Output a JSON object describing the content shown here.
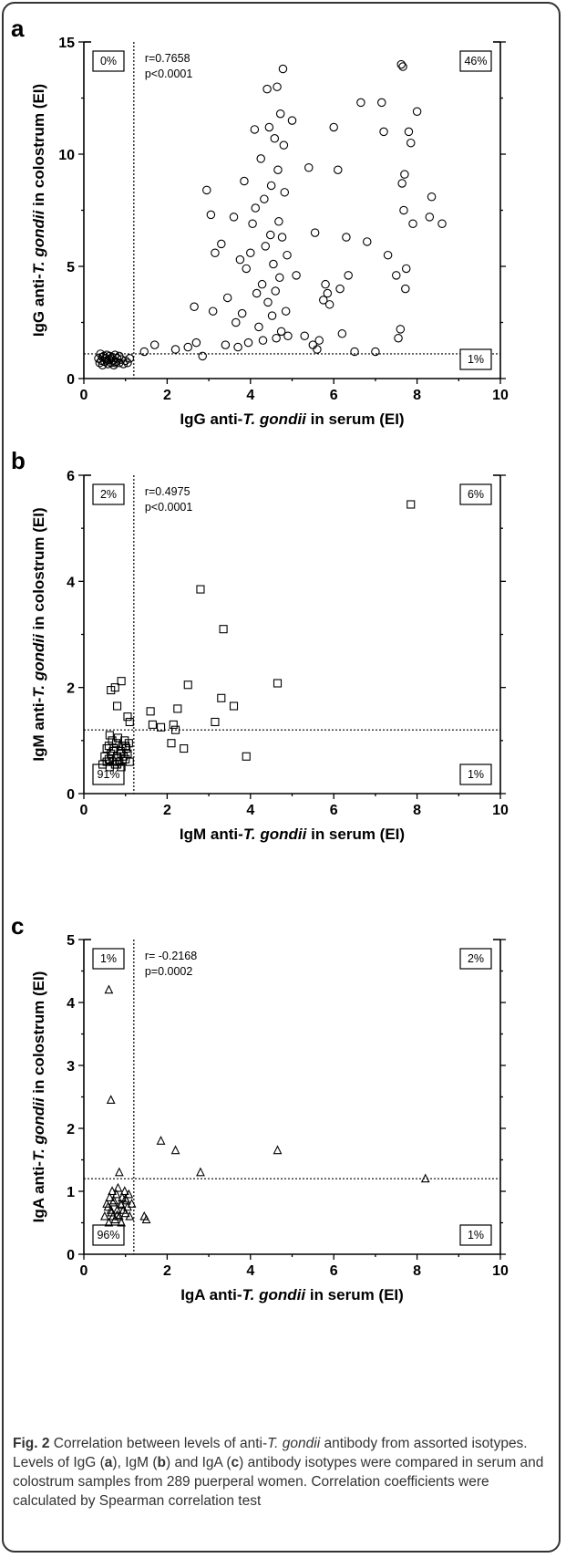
{
  "chart_data": [
    {
      "type": "scatter",
      "panel": "a",
      "marker": "circle",
      "xlabel": [
        "IgG anti-",
        "T. gondii",
        " in serum (EI)"
      ],
      "ylabel": [
        "IgG anti-",
        "T. gondii",
        " in colostrum (EI)"
      ],
      "xlim": [
        0,
        10
      ],
      "ylim": [
        0,
        15
      ],
      "xticks": [
        0,
        2,
        4,
        6,
        8,
        10
      ],
      "yticks": [
        0,
        5,
        10,
        15
      ],
      "cutoff_x": 1.2,
      "cutoff_y": 1.1,
      "stats": [
        "r=0.7658",
        "p<0.0001"
      ],
      "quadrants": {
        "top_left": "0%",
        "top_right": "46%",
        "bottom_right": "1%"
      },
      "points": [
        [
          0.35,
          0.9
        ],
        [
          0.38,
          0.7
        ],
        [
          0.4,
          1.1
        ],
        [
          0.42,
          0.8
        ],
        [
          0.45,
          0.6
        ],
        [
          0.48,
          1.0
        ],
        [
          0.5,
          0.75
        ],
        [
          0.52,
          0.9
        ],
        [
          0.55,
          1.05
        ],
        [
          0.58,
          0.65
        ],
        [
          0.6,
          0.85
        ],
        [
          0.62,
          1.0
        ],
        [
          0.65,
          0.7
        ],
        [
          0.68,
          0.95
        ],
        [
          0.7,
          0.8
        ],
        [
          0.72,
          0.6
        ],
        [
          0.75,
          1.05
        ],
        [
          0.78,
          0.75
        ],
        [
          0.8,
          0.9
        ],
        [
          0.85,
          0.7
        ],
        [
          0.9,
          0.85
        ],
        [
          0.95,
          0.65
        ],
        [
          1.0,
          0.8
        ],
        [
          1.05,
          0.7
        ],
        [
          1.1,
          0.9
        ],
        [
          0.45,
          0.95
        ],
        [
          0.55,
          0.8
        ],
        [
          0.65,
          0.9
        ],
        [
          0.75,
          0.7
        ],
        [
          0.85,
          1.0
        ],
        [
          1.45,
          1.2
        ],
        [
          1.7,
          1.5
        ],
        [
          2.2,
          1.3
        ],
        [
          2.5,
          1.4
        ],
        [
          2.65,
          3.2
        ],
        [
          2.7,
          1.6
        ],
        [
          2.85,
          1.0
        ],
        [
          2.95,
          8.4
        ],
        [
          3.05,
          7.3
        ],
        [
          3.1,
          3.0
        ],
        [
          3.15,
          5.6
        ],
        [
          3.3,
          6.0
        ],
        [
          3.4,
          1.5
        ],
        [
          3.45,
          3.6
        ],
        [
          3.6,
          7.2
        ],
        [
          3.65,
          2.5
        ],
        [
          3.7,
          1.4
        ],
        [
          3.75,
          5.3
        ],
        [
          3.8,
          2.9
        ],
        [
          3.85,
          8.8
        ],
        [
          3.9,
          4.9
        ],
        [
          3.95,
          1.6
        ],
        [
          4.0,
          5.6
        ],
        [
          4.05,
          6.9
        ],
        [
          4.1,
          11.1
        ],
        [
          4.12,
          7.6
        ],
        [
          4.15,
          3.8
        ],
        [
          4.2,
          2.3
        ],
        [
          4.25,
          9.8
        ],
        [
          4.28,
          4.2
        ],
        [
          4.3,
          1.7
        ],
        [
          4.33,
          8.0
        ],
        [
          4.36,
          5.9
        ],
        [
          4.4,
          12.9
        ],
        [
          4.42,
          3.4
        ],
        [
          4.45,
          11.2
        ],
        [
          4.48,
          6.4
        ],
        [
          4.5,
          8.6
        ],
        [
          4.52,
          2.8
        ],
        [
          4.55,
          5.1
        ],
        [
          4.58,
          10.7
        ],
        [
          4.6,
          3.9
        ],
        [
          4.62,
          1.8
        ],
        [
          4.64,
          13.0
        ],
        [
          4.66,
          9.3
        ],
        [
          4.68,
          7.0
        ],
        [
          4.7,
          4.5
        ],
        [
          4.72,
          11.8
        ],
        [
          4.74,
          2.1
        ],
        [
          4.76,
          6.3
        ],
        [
          4.78,
          13.8
        ],
        [
          4.8,
          10.4
        ],
        [
          4.82,
          8.3
        ],
        [
          4.85,
          3.0
        ],
        [
          4.88,
          5.5
        ],
        [
          4.9,
          1.9
        ],
        [
          5.0,
          11.5
        ],
        [
          5.1,
          4.6
        ],
        [
          5.3,
          1.9
        ],
        [
          5.4,
          9.4
        ],
        [
          5.5,
          1.5
        ],
        [
          5.55,
          6.5
        ],
        [
          5.6,
          1.3
        ],
        [
          5.65,
          1.7
        ],
        [
          5.75,
          3.5
        ],
        [
          5.8,
          4.2
        ],
        [
          5.85,
          3.8
        ],
        [
          5.9,
          3.3
        ],
        [
          6.0,
          11.2
        ],
        [
          6.1,
          9.3
        ],
        [
          6.15,
          4.0
        ],
        [
          6.2,
          2.0
        ],
        [
          6.3,
          6.3
        ],
        [
          6.35,
          4.6
        ],
        [
          6.5,
          1.2
        ],
        [
          6.65,
          12.3
        ],
        [
          6.8,
          6.1
        ],
        [
          7.0,
          1.2
        ],
        [
          7.15,
          12.3
        ],
        [
          7.2,
          11.0
        ],
        [
          7.3,
          5.5
        ],
        [
          7.5,
          4.6
        ],
        [
          7.55,
          1.8
        ],
        [
          7.6,
          2.2
        ],
        [
          7.62,
          14.0
        ],
        [
          7.64,
          8.7
        ],
        [
          7.66,
          13.9
        ],
        [
          7.68,
          7.5
        ],
        [
          7.7,
          9.1
        ],
        [
          7.72,
          4.0
        ],
        [
          7.74,
          4.9
        ],
        [
          7.8,
          11.0
        ],
        [
          7.85,
          10.5
        ],
        [
          7.9,
          6.9
        ],
        [
          8.0,
          11.9
        ],
        [
          8.3,
          7.2
        ],
        [
          8.35,
          8.1
        ],
        [
          8.6,
          6.9
        ]
      ]
    },
    {
      "type": "scatter",
      "panel": "b",
      "marker": "square",
      "xlabel": [
        "IgM anti-",
        "T. gondii",
        " in serum (EI)"
      ],
      "ylabel": [
        "IgM anti-",
        "T. gondii",
        " in colostrum (EI)"
      ],
      "xlim": [
        0,
        10
      ],
      "ylim": [
        0,
        6
      ],
      "xticks": [
        0,
        2,
        4,
        6,
        8,
        10
      ],
      "yticks": [
        0,
        2,
        4,
        6
      ],
      "cutoff_x": 1.2,
      "cutoff_y": 1.2,
      "stats": [
        "r=0.4975",
        "p<0.0001"
      ],
      "quadrants": {
        "top_left": "2%",
        "top_right": "6%",
        "bottom_left": "91%",
        "bottom_right": "1%"
      },
      "points": [
        [
          0.45,
          0.55
        ],
        [
          0.5,
          0.7
        ],
        [
          0.55,
          0.6
        ],
        [
          0.6,
          0.9
        ],
        [
          0.62,
          0.5
        ],
        [
          0.65,
          0.75
        ],
        [
          0.68,
          1.0
        ],
        [
          0.7,
          0.6
        ],
        [
          0.72,
          0.85
        ],
        [
          0.75,
          0.55
        ],
        [
          0.78,
          0.95
        ],
        [
          0.8,
          0.7
        ],
        [
          0.82,
          1.05
        ],
        [
          0.85,
          0.6
        ],
        [
          0.88,
          0.8
        ],
        [
          0.9,
          0.5
        ],
        [
          0.92,
          0.9
        ],
        [
          0.95,
          0.7
        ],
        [
          0.98,
          1.0
        ],
        [
          1.0,
          0.65
        ],
        [
          1.02,
          0.85
        ],
        [
          1.05,
          0.75
        ],
        [
          1.08,
          0.95
        ],
        [
          1.1,
          0.6
        ],
        [
          0.6,
          0.65
        ],
        [
          0.7,
          0.8
        ],
        [
          0.8,
          0.55
        ],
        [
          0.9,
          0.75
        ],
        [
          1.0,
          0.9
        ],
        [
          0.55,
          0.85
        ],
        [
          0.65,
          1.95
        ],
        [
          0.75,
          2.0
        ],
        [
          0.8,
          1.65
        ],
        [
          0.9,
          2.12
        ],
        [
          0.62,
          1.1
        ],
        [
          1.05,
          1.45
        ],
        [
          1.1,
          1.35
        ],
        [
          1.6,
          1.55
        ],
        [
          1.65,
          1.3
        ],
        [
          1.85,
          1.25
        ],
        [
          2.1,
          0.95
        ],
        [
          2.15,
          1.3
        ],
        [
          2.2,
          1.2
        ],
        [
          2.25,
          1.6
        ],
        [
          2.4,
          0.85
        ],
        [
          2.5,
          2.05
        ],
        [
          2.8,
          3.85
        ],
        [
          3.15,
          1.35
        ],
        [
          3.3,
          1.8
        ],
        [
          3.35,
          3.1
        ],
        [
          3.6,
          1.65
        ],
        [
          3.9,
          0.7
        ],
        [
          4.65,
          2.08
        ],
        [
          7.85,
          5.45
        ]
      ]
    },
    {
      "type": "scatter",
      "panel": "c",
      "marker": "triangle",
      "xlabel": [
        "IgA anti-",
        "T. gondii",
        " in serum (EI)"
      ],
      "ylabel": [
        "IgA anti-",
        "T. gondii",
        " in colostrum (EI)"
      ],
      "xlim": [
        0,
        10
      ],
      "ylim": [
        0,
        5
      ],
      "xticks": [
        0,
        2,
        4,
        6,
        8,
        10
      ],
      "yticks": [
        0,
        1,
        2,
        3,
        4,
        5
      ],
      "cutoff_x": 1.2,
      "cutoff_y": 1.2,
      "stats": [
        "r= -0.2168",
        "p=0.0002"
      ],
      "quadrants": {
        "top_left": "1%",
        "top_right": "2%",
        "bottom_left": "96%",
        "bottom_right": "1%"
      },
      "points": [
        [
          0.5,
          0.6
        ],
        [
          0.55,
          0.8
        ],
        [
          0.6,
          0.5
        ],
        [
          0.62,
          0.9
        ],
        [
          0.65,
          0.7
        ],
        [
          0.68,
          1.0
        ],
        [
          0.7,
          0.6
        ],
        [
          0.72,
          0.85
        ],
        [
          0.75,
          0.55
        ],
        [
          0.78,
          0.95
        ],
        [
          0.8,
          0.7
        ],
        [
          0.82,
          1.05
        ],
        [
          0.85,
          0.6
        ],
        [
          0.88,
          0.8
        ],
        [
          0.9,
          0.5
        ],
        [
          0.92,
          0.9
        ],
        [
          0.95,
          0.7
        ],
        [
          0.98,
          1.0
        ],
        [
          1.0,
          0.65
        ],
        [
          1.02,
          0.85
        ],
        [
          1.05,
          0.75
        ],
        [
          1.08,
          0.95
        ],
        [
          1.1,
          0.6
        ],
        [
          1.15,
          0.8
        ],
        [
          0.58,
          0.75
        ],
        [
          0.7,
          0.82
        ],
        [
          0.8,
          0.62
        ],
        [
          0.9,
          0.78
        ],
        [
          1.0,
          0.88
        ],
        [
          0.66,
          0.66
        ],
        [
          0.6,
          4.2
        ],
        [
          0.65,
          2.45
        ],
        [
          0.85,
          1.3
        ],
        [
          1.45,
          0.6
        ],
        [
          1.5,
          0.55
        ],
        [
          1.85,
          1.8
        ],
        [
          2.2,
          1.65
        ],
        [
          2.8,
          1.3
        ],
        [
          4.65,
          1.65
        ],
        [
          8.2,
          1.2
        ]
      ]
    }
  ],
  "caption": {
    "label": "Fig. 2",
    "parts": [
      " Correlation between levels of anti-",
      "T. gondii",
      " antibody from assorted isotypes. Levels of IgG (",
      "a",
      "), IgM (",
      "b",
      ") and IgA (",
      "c",
      ") antibody isotypes were compared in serum and colostrum samples from 289 puerperal women. Correlation coefficients were calculated by Spearman correlation test"
    ]
  }
}
